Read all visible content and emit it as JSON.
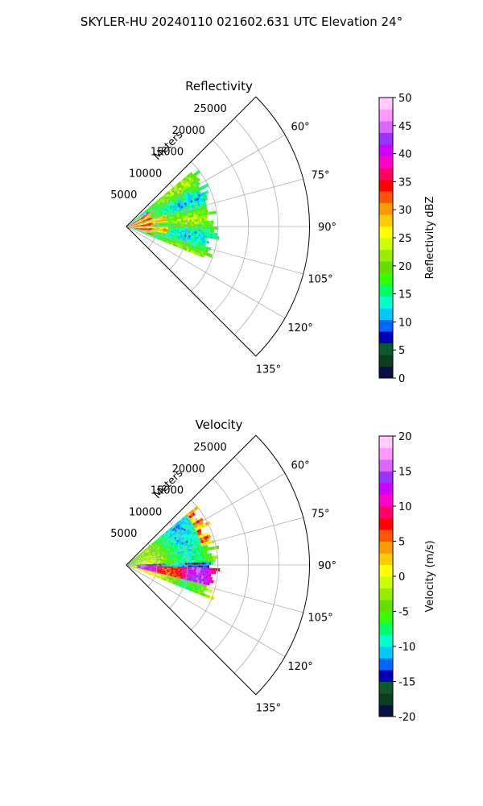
{
  "figure": {
    "suptitle": "SKYLER-HU  20240110  021602.631 UTC Elevation 24°"
  },
  "chart_data": [
    {
      "type": "heatmap",
      "projection": "polar-sector",
      "title": "Reflectivity",
      "radial_label": "Meters",
      "radial_ticks": [
        5000,
        10000,
        15000,
        20000,
        25000
      ],
      "range_max_m": 30000,
      "azimuth_range_deg": [
        45,
        135
      ],
      "azimuth_ticks_deg": [
        60,
        75,
        90,
        105,
        120,
        135
      ],
      "grid": true,
      "colorbar": {
        "label": "Reflectivity dBZ",
        "min": 0,
        "max": 50,
        "ticks": [
          0,
          5,
          10,
          15,
          20,
          25,
          30,
          35,
          40,
          45,
          50
        ],
        "colors": [
          "#0a0f4a",
          "#0b3d1f",
          "#0a5a2a",
          "#0000b4",
          "#0066ff",
          "#00c8ff",
          "#00ffcc",
          "#00ff66",
          "#33ff00",
          "#66dd00",
          "#99ee00",
          "#ccff00",
          "#ffff00",
          "#ffcc00",
          "#ff9900",
          "#ff5500",
          "#ff0000",
          "#ff0066",
          "#ff00cc",
          "#cc00ff",
          "#9933ff",
          "#dd66ff",
          "#ff99ff",
          "#ffccff"
        ]
      },
      "data_extent": {
        "az_start_deg": 50,
        "az_end_deg": 112,
        "max_range_m": 15500
      },
      "dominant_values": "15-25 dBZ echoes across sector, 30-40 dBZ near radar between 60° and 105°"
    },
    {
      "type": "heatmap",
      "projection": "polar-sector",
      "title": "Velocity",
      "radial_label": "Meters",
      "radial_ticks": [
        5000,
        10000,
        15000,
        20000,
        25000
      ],
      "range_max_m": 30000,
      "azimuth_range_deg": [
        45,
        135
      ],
      "azimuth_ticks_deg": [
        60,
        75,
        90,
        105,
        120,
        135
      ],
      "grid": true,
      "colorbar": {
        "label": "Velocity (m/s)",
        "min": -20,
        "max": 20,
        "ticks": [
          -20,
          -15,
          -10,
          -5,
          0,
          5,
          10,
          15,
          20
        ],
        "colors": [
          "#0a0f4a",
          "#0b3d1f",
          "#0a5a2a",
          "#0000b4",
          "#0066ff",
          "#00c8ff",
          "#00ffcc",
          "#00ff66",
          "#33ff00",
          "#66dd00",
          "#99ee00",
          "#ccff00",
          "#ffff00",
          "#ffcc00",
          "#ff9900",
          "#ff5500",
          "#ff0000",
          "#ff0066",
          "#ff00cc",
          "#cc00ff",
          "#9933ff",
          "#dd66ff",
          "#ff99ff",
          "#ffccff"
        ]
      },
      "data_extent": {
        "az_start_deg": 50,
        "az_end_deg": 112,
        "max_range_m": 15500
      },
      "dominant_values": "-10 to 0 m/s over most of sector, +10 to +15 m/s couplet near 95°-105°"
    }
  ]
}
